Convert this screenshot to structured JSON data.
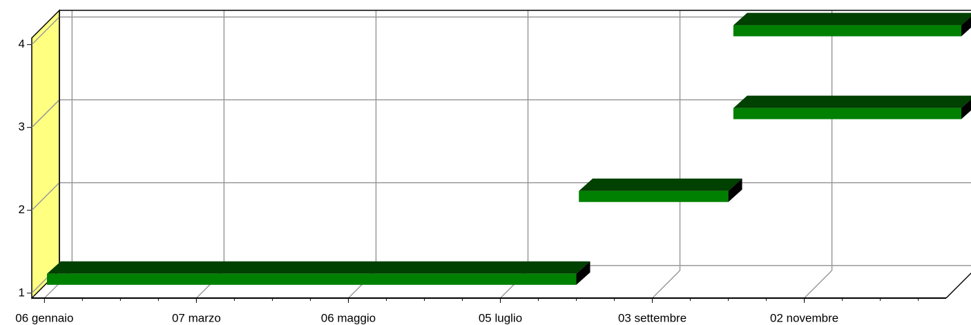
{
  "chart_data": {
    "type": "gantt",
    "y": [
      1,
      2,
      3,
      4
    ],
    "start": [
      7,
      217,
      278,
      278
    ],
    "end": [
      216,
      276,
      368,
      368
    ],
    "color": "#008000",
    "top_color": "#004000",
    "side_color": "#000000",
    "wall_color": "#ffff80",
    "xlim": [
      1,
      362
    ],
    "xticks": [
      {
        "value": 6,
        "label": "06 gennaio"
      },
      {
        "value": 66,
        "label": "07 marzo"
      },
      {
        "value": 126,
        "label": "06 maggio"
      },
      {
        "value": 186,
        "label": "05 luglio"
      },
      {
        "value": 246,
        "label": "03 settembre"
      },
      {
        "value": 306,
        "label": "02 novembre"
      }
    ],
    "ylim": [
      0.94,
      4.08
    ],
    "yticks": [
      1,
      2,
      3,
      4
    ],
    "grid": true
  }
}
